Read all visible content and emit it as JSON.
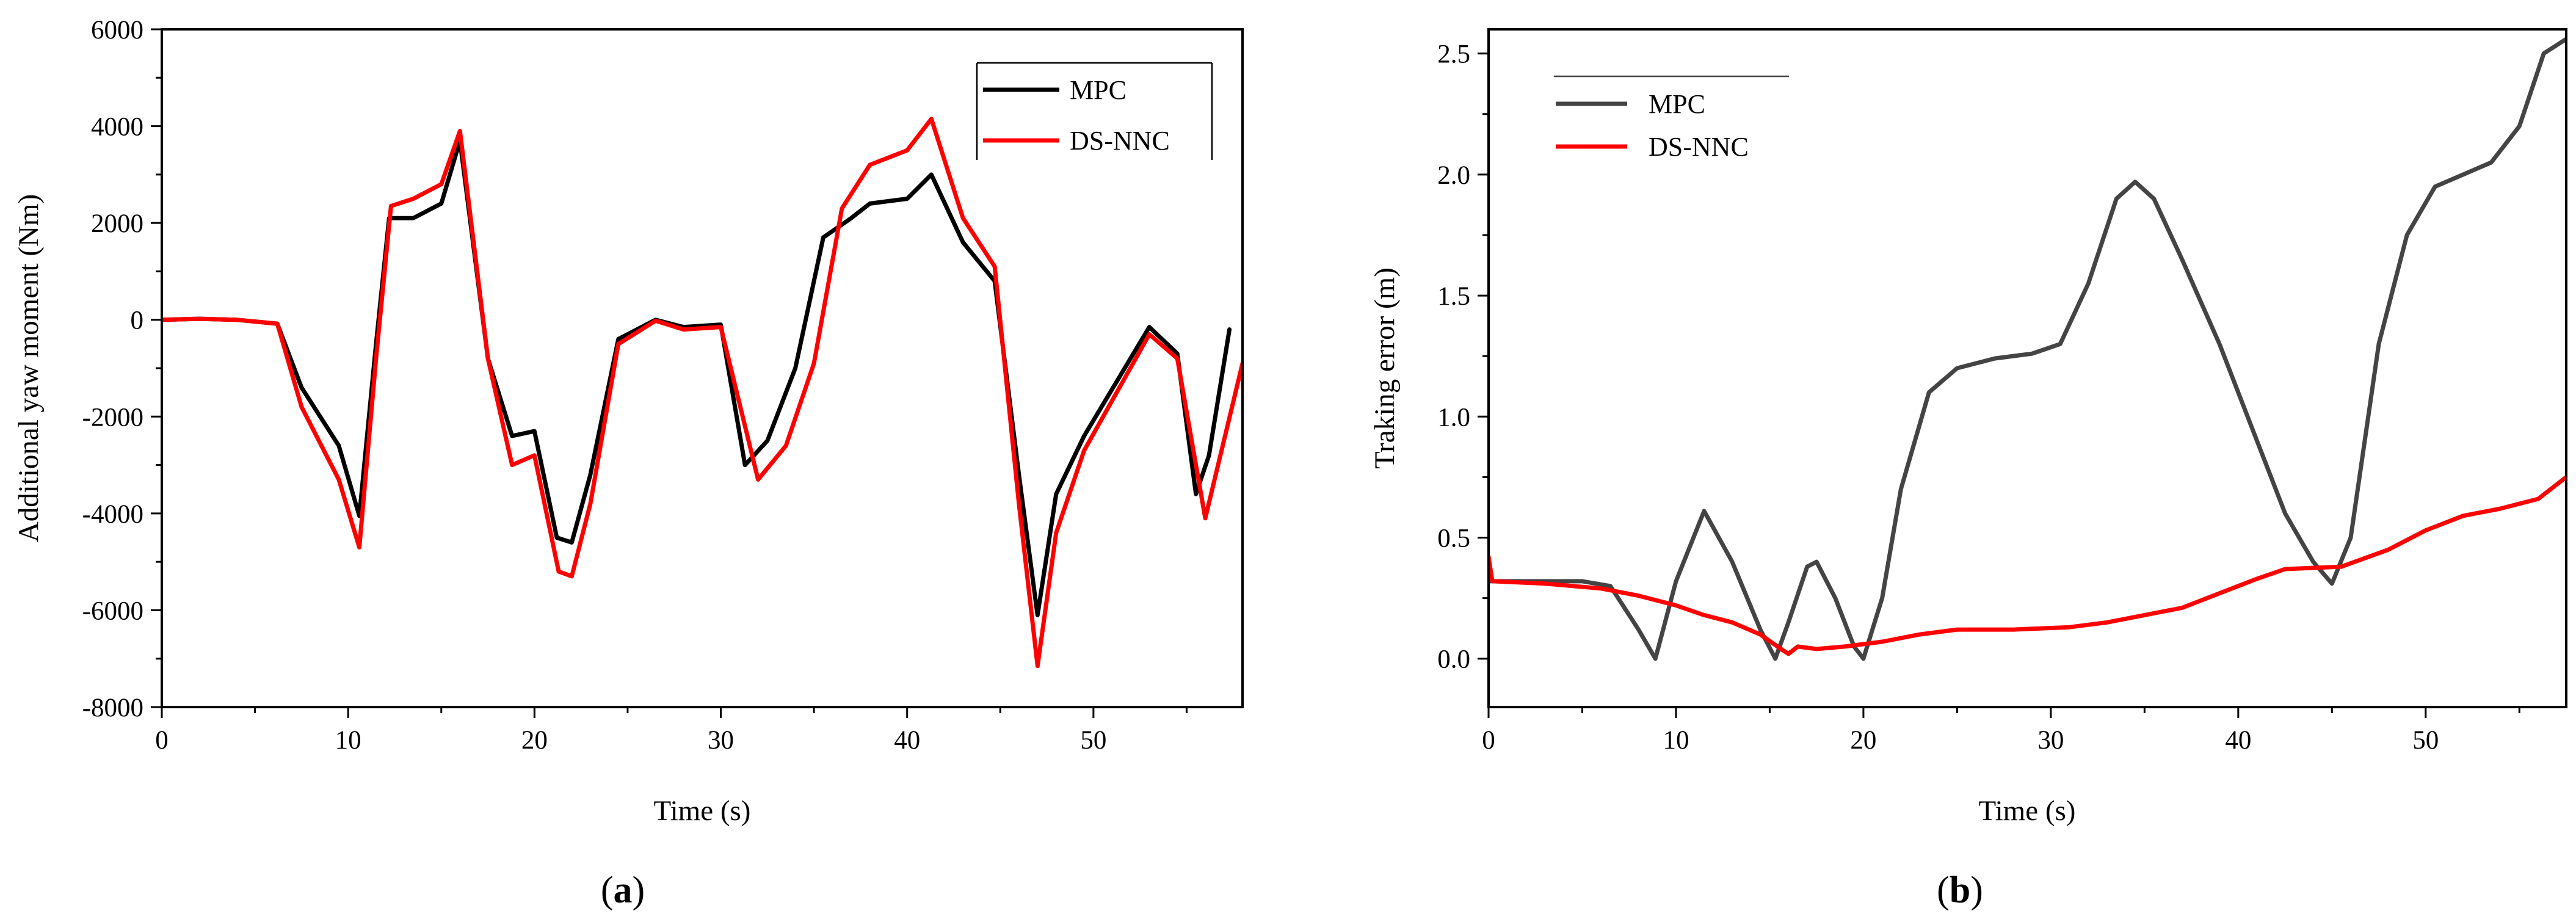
{
  "chart_data": [
    {
      "type": "line",
      "panel_label": {
        "open": "(",
        "letter": "a",
        "close": ")"
      },
      "title": "",
      "xlabel": "Time (s)",
      "ylabel": "Additional yaw moment (Nm)",
      "xlim": [
        0,
        58
      ],
      "ylim": [
        -8000,
        6000
      ],
      "xticks": [
        0,
        10,
        20,
        30,
        40,
        50
      ],
      "yticks": [
        -8000,
        -6000,
        -4000,
        -2000,
        0,
        2000,
        4000,
        6000
      ],
      "legend_position": "top-right",
      "series": [
        {
          "name": "MPC",
          "color": "#000000",
          "points": [
            [
              0,
              0
            ],
            [
              2,
              20
            ],
            [
              4,
              0
            ],
            [
              6.2,
              -80
            ],
            [
              7.5,
              -1400
            ],
            [
              9.5,
              -2600
            ],
            [
              10.6,
              -4050
            ],
            [
              11.5,
              -500
            ],
            [
              12.2,
              2100
            ],
            [
              13.5,
              2100
            ],
            [
              15,
              2400
            ],
            [
              16,
              3700
            ],
            [
              17.5,
              -800
            ],
            [
              18.8,
              -2400
            ],
            [
              20,
              -2300
            ],
            [
              21.2,
              -4500
            ],
            [
              22,
              -4600
            ],
            [
              23,
              -3200
            ],
            [
              24.5,
              -400
            ],
            [
              26.5,
              0
            ],
            [
              28,
              -150
            ],
            [
              30,
              -100
            ],
            [
              31.3,
              -3000
            ],
            [
              32.5,
              -2500
            ],
            [
              34,
              -1000
            ],
            [
              35.5,
              1700
            ],
            [
              37,
              2100
            ],
            [
              38,
              2400
            ],
            [
              40,
              2500
            ],
            [
              41.3,
              3000
            ],
            [
              43,
              1600
            ],
            [
              44.7,
              800
            ],
            [
              46,
              -3200
            ],
            [
              47,
              -6100
            ],
            [
              48,
              -3600
            ],
            [
              49.5,
              -2400
            ],
            [
              53,
              -150
            ],
            [
              54.5,
              -700
            ],
            [
              55.5,
              -3600
            ],
            [
              56.2,
              -2800
            ],
            [
              57.3,
              -200
            ]
          ]
        },
        {
          "name": "DS-NNC",
          "color": "#ff0000",
          "points": [
            [
              0,
              0
            ],
            [
              2,
              20
            ],
            [
              4,
              0
            ],
            [
              6.2,
              -80
            ],
            [
              7.5,
              -1800
            ],
            [
              9.5,
              -3300
            ],
            [
              10.6,
              -4700
            ],
            [
              11.5,
              -800
            ],
            [
              12.3,
              2350
            ],
            [
              13.5,
              2500
            ],
            [
              15,
              2800
            ],
            [
              16,
              3900
            ],
            [
              17.5,
              -800
            ],
            [
              18.8,
              -3000
            ],
            [
              20,
              -2800
            ],
            [
              21.3,
              -5200
            ],
            [
              22,
              -5300
            ],
            [
              23,
              -3800
            ],
            [
              24.5,
              -500
            ],
            [
              26.5,
              -20
            ],
            [
              28,
              -200
            ],
            [
              30,
              -150
            ],
            [
              32,
              -3300
            ],
            [
              33.5,
              -2600
            ],
            [
              35,
              -900
            ],
            [
              36.5,
              2300
            ],
            [
              38,
              3200
            ],
            [
              40,
              3500
            ],
            [
              41.3,
              4150
            ],
            [
              43,
              2100
            ],
            [
              44.7,
              1100
            ],
            [
              46,
              -3800
            ],
            [
              47,
              -7150
            ],
            [
              48,
              -4400
            ],
            [
              49.5,
              -2700
            ],
            [
              53,
              -300
            ],
            [
              54.5,
              -800
            ],
            [
              56,
              -4100
            ],
            [
              57,
              -2500
            ],
            [
              58,
              -900
            ]
          ]
        }
      ]
    },
    {
      "type": "line",
      "panel_label": {
        "open": "(",
        "letter": "b",
        "close": ")"
      },
      "title": "",
      "xlabel": "Time (s)",
      "ylabel": "Traking error (m)",
      "xlim": [
        0,
        57.5
      ],
      "ylim": [
        -0.2,
        2.6
      ],
      "xticks": [
        0,
        10,
        20,
        30,
        40,
        50
      ],
      "ytick_labels": [
        "0.0",
        "0.5",
        "1.0",
        "1.5",
        "2.0",
        "2.5"
      ],
      "legend_position": "top-left",
      "series": [
        {
          "name": "MPC",
          "color": "#444444",
          "points": [
            [
              0,
              0.32
            ],
            [
              5,
              0.32
            ],
            [
              6.5,
              0.3
            ],
            [
              8,
              0.12
            ],
            [
              8.9,
              0.0
            ],
            [
              10,
              0.32
            ],
            [
              11.5,
              0.61
            ],
            [
              13,
              0.4
            ],
            [
              14.5,
              0.12
            ],
            [
              15.3,
              0.0
            ],
            [
              16,
              0.15
            ],
            [
              17,
              0.38
            ],
            [
              17.5,
              0.4
            ],
            [
              18.5,
              0.25
            ],
            [
              19.5,
              0.05
            ],
            [
              20,
              0.0
            ],
            [
              21,
              0.25
            ],
            [
              22,
              0.7
            ],
            [
              23.5,
              1.1
            ],
            [
              25,
              1.2
            ],
            [
              27,
              1.24
            ],
            [
              29,
              1.26
            ],
            [
              30.5,
              1.3
            ],
            [
              32,
              1.55
            ],
            [
              33.5,
              1.9
            ],
            [
              34.5,
              1.97
            ],
            [
              35.5,
              1.9
            ],
            [
              37,
              1.65
            ],
            [
              39,
              1.3
            ],
            [
              41,
              0.9
            ],
            [
              42.5,
              0.6
            ],
            [
              44,
              0.4
            ],
            [
              45,
              0.31
            ],
            [
              46,
              0.5
            ],
            [
              47.5,
              1.3
            ],
            [
              49,
              1.75
            ],
            [
              50.5,
              1.95
            ],
            [
              52,
              2.0
            ],
            [
              53.5,
              2.05
            ],
            [
              55,
              2.2
            ],
            [
              56.3,
              2.5
            ],
            [
              57.5,
              2.56
            ]
          ]
        },
        {
          "name": "DS-NNC",
          "color": "#ff0000",
          "points": [
            [
              0,
              0.42
            ],
            [
              0.2,
              0.32
            ],
            [
              3,
              0.31
            ],
            [
              6,
              0.29
            ],
            [
              8,
              0.26
            ],
            [
              10,
              0.22
            ],
            [
              11.5,
              0.18
            ],
            [
              13,
              0.15
            ],
            [
              14.5,
              0.1
            ],
            [
              15.6,
              0.04
            ],
            [
              16,
              0.02
            ],
            [
              16.5,
              0.05
            ],
            [
              17.5,
              0.04
            ],
            [
              19,
              0.05
            ],
            [
              21,
              0.07
            ],
            [
              23,
              0.1
            ],
            [
              25,
              0.12
            ],
            [
              28,
              0.12
            ],
            [
              31,
              0.13
            ],
            [
              33,
              0.15
            ],
            [
              35,
              0.18
            ],
            [
              37,
              0.21
            ],
            [
              39,
              0.27
            ],
            [
              41,
              0.33
            ],
            [
              42.5,
              0.37
            ],
            [
              45.5,
              0.38
            ],
            [
              48,
              0.45
            ],
            [
              50,
              0.53
            ],
            [
              52,
              0.59
            ],
            [
              54,
              0.62
            ],
            [
              56,
              0.66
            ],
            [
              57.5,
              0.75
            ]
          ]
        }
      ]
    }
  ]
}
